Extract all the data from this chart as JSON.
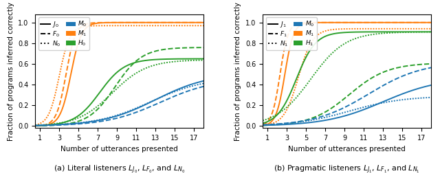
{
  "caption_a": "(a) Literal listeners $L_{J_0}$, $L_{F_0}$, and $L_{N_0}$",
  "caption_b": "(b) Pragmatic listeners $L_{J_1}$, $L_{F_1}$, and $L_{N_1}$",
  "xlabel": "Number of utterances presented",
  "ylabel": "Fraction of programs inferred correctly",
  "xlim": [
    0.5,
    18
  ],
  "ylim": [
    -0.02,
    1.08
  ],
  "xticks": [
    1,
    3,
    5,
    7,
    9,
    11,
    13,
    15,
    17
  ],
  "colors": {
    "blue": "#1f77b4",
    "orange": "#ff7f0e",
    "green": "#2ca02c"
  },
  "left_legend": [
    "$J_0$",
    "$F_0$",
    "$N_0$",
    "$M_0$",
    "$M_1$",
    "$H_0$"
  ],
  "right_legend": [
    "$J_1$",
    "$F_1$",
    "$N_1$",
    "$M_0$",
    "$M_1$",
    "$H_1$"
  ]
}
